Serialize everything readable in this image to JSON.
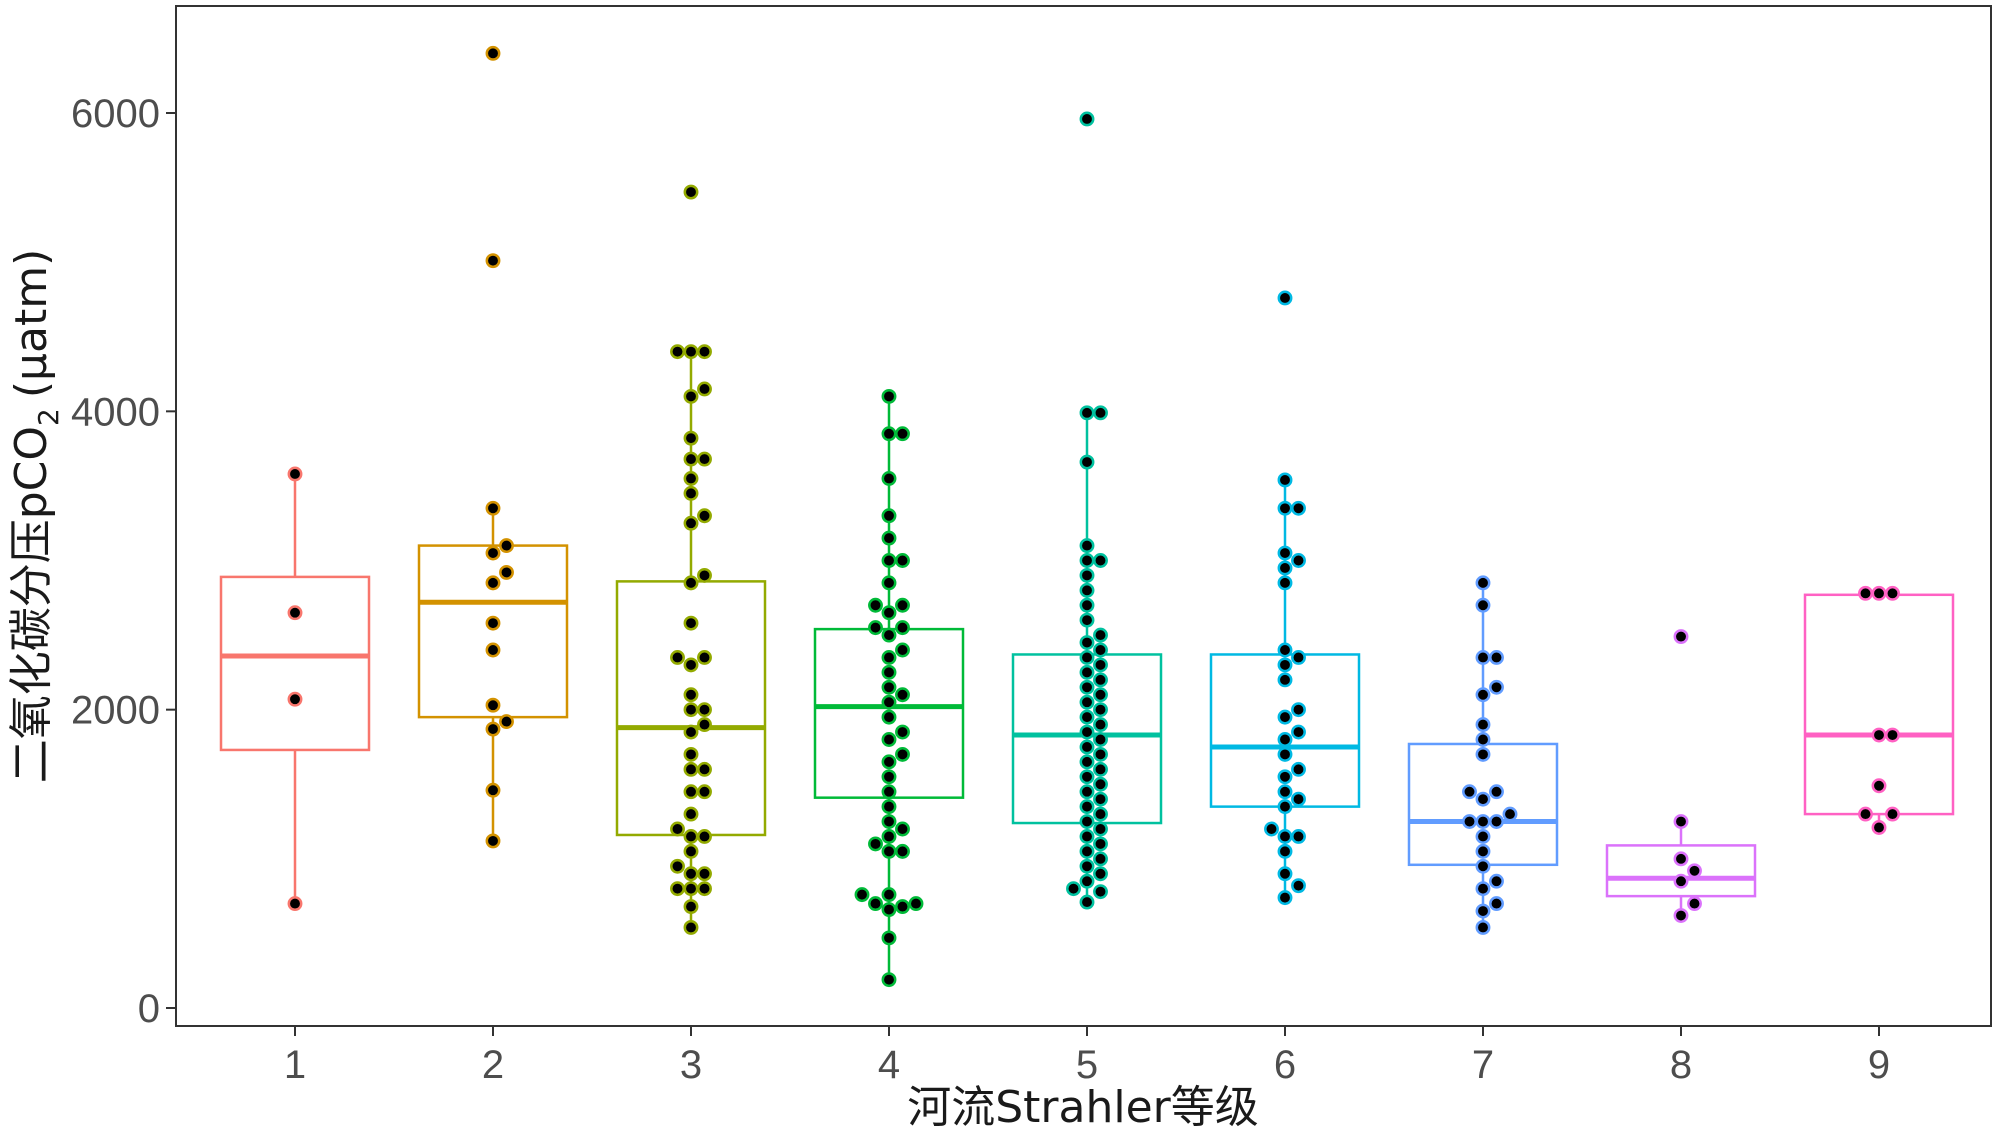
{
  "chart_data": {
    "type": "boxplot",
    "xlabel": "河流Strahler等级",
    "ylabel_main": "二氧化碳分压pCO",
    "ylabel_sub": "2",
    "ylabel_unit": "(μatm)",
    "ylim": [
      -100,
      6700
    ],
    "yticks": [
      0,
      2000,
      4000,
      6000
    ],
    "grid": false,
    "categories": [
      "1",
      "2",
      "3",
      "4",
      "5",
      "6",
      "7",
      "8",
      "9"
    ],
    "boxes": [
      {
        "cat": "1",
        "color": "#F8766D",
        "q1": 1730,
        "median": 2360,
        "q3": 2890,
        "whisker_low": 700,
        "whisker_high": 3580,
        "points": [
          700,
          2070,
          2650,
          3580
        ]
      },
      {
        "cat": "2",
        "color": "#D39200",
        "q1": 1950,
        "median": 2720,
        "q3": 3100,
        "whisker_low": 1120,
        "whisker_high": 3350,
        "points": [
          1120,
          1460,
          1870,
          1920,
          2030,
          2400,
          2580,
          2850,
          2920,
          3050,
          3100,
          3350,
          5010,
          6400
        ]
      },
      {
        "cat": "3",
        "color": "#93AA00",
        "q1": 1160,
        "median": 1880,
        "q3": 2860,
        "whisker_low": 540,
        "whisker_high": 4400,
        "points": [
          540,
          680,
          800,
          800,
          800,
          900,
          900,
          950,
          1050,
          1150,
          1150,
          1200,
          1300,
          1450,
          1450,
          1600,
          1600,
          1700,
          1850,
          1900,
          2000,
          2000,
          2100,
          2300,
          2350,
          2350,
          2580,
          2850,
          2900,
          3250,
          3300,
          3450,
          3550,
          3680,
          3680,
          3820,
          4100,
          4150,
          4400,
          4400,
          4400,
          5470
        ]
      },
      {
        "cat": "4",
        "color": "#00BA38",
        "q1": 1410,
        "median": 2020,
        "q3": 2540,
        "whisker_low": 190,
        "whisker_high": 4100,
        "points": [
          190,
          470,
          660,
          680,
          700,
          700,
          760,
          760,
          1050,
          1050,
          1100,
          1150,
          1200,
          1250,
          1350,
          1450,
          1550,
          1650,
          1700,
          1800,
          1850,
          1950,
          2050,
          2100,
          2150,
          2250,
          2350,
          2400,
          2500,
          2550,
          2550,
          2650,
          2700,
          2700,
          2850,
          3000,
          3000,
          3150,
          3300,
          3550,
          3850,
          3850,
          4100
        ]
      },
      {
        "cat": "5",
        "color": "#00C19F",
        "q1": 1240,
        "median": 1830,
        "q3": 2370,
        "whisker_low": 710,
        "whisker_high": 3990,
        "points": [
          710,
          780,
          800,
          850,
          900,
          950,
          1000,
          1050,
          1100,
          1150,
          1200,
          1250,
          1300,
          1350,
          1400,
          1450,
          1500,
          1550,
          1600,
          1650,
          1700,
          1750,
          1800,
          1850,
          1900,
          1950,
          2000,
          2050,
          2100,
          2150,
          2200,
          2250,
          2300,
          2350,
          2400,
          2450,
          2500,
          2600,
          2700,
          2800,
          2900,
          3000,
          3000,
          3100,
          3660,
          3990,
          3990,
          5960
        ]
      },
      {
        "cat": "6",
        "color": "#00B9E3",
        "q1": 1350,
        "median": 1750,
        "q3": 2370,
        "whisker_low": 740,
        "whisker_high": 3540,
        "points": [
          740,
          820,
          900,
          1050,
          1150,
          1150,
          1200,
          1350,
          1400,
          1450,
          1550,
          1600,
          1700,
          1800,
          1850,
          1950,
          2000,
          2200,
          2300,
          2350,
          2400,
          2850,
          2950,
          3000,
          3050,
          3350,
          3350,
          3540,
          4760
        ]
      },
      {
        "cat": "7",
        "color": "#619CFF",
        "q1": 960,
        "median": 1250,
        "q3": 1770,
        "whisker_low": 540,
        "whisker_high": 2850,
        "points": [
          540,
          650,
          700,
          800,
          850,
          950,
          1050,
          1150,
          1250,
          1250,
          1250,
          1300,
          1400,
          1450,
          1450,
          1700,
          1800,
          1900,
          2100,
          2150,
          2350,
          2350,
          2700,
          2850
        ]
      },
      {
        "cat": "8",
        "color": "#DB72FB",
        "q1": 750,
        "median": 870,
        "q3": 1090,
        "whisker_low": 620,
        "whisker_high": 1250,
        "points": [
          620,
          700,
          850,
          920,
          1000,
          1250,
          2490
        ]
      },
      {
        "cat": "9",
        "color": "#FF61C3",
        "q1": 1300,
        "median": 1830,
        "q3": 2770,
        "whisker_low": 1210,
        "whisker_high": 2780,
        "points": [
          1210,
          1300,
          1300,
          1490,
          1830,
          1830,
          2780,
          2780,
          2780
        ]
      }
    ]
  }
}
